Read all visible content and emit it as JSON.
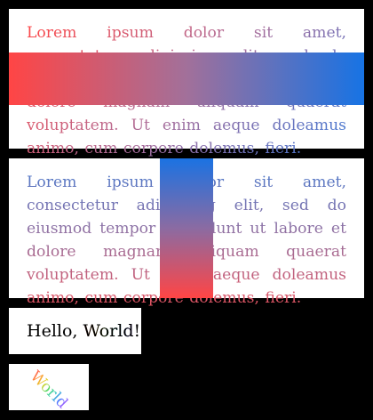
{
  "paragraph_1": "Lorem ipsum dolor sit amet, consectetur adipiscing elit, sed do eiusmod tempor incididunt ut labore et dolore magnam aliquam quaerat voluptatem. Ut enim aeque doleamus animo, cum corpore dolemus, fieri.",
  "paragraph_2": "Lorem ipsum dolor sit amet, consectetur adipiscing elit, sed do eiusmod tempor incididunt ut labore et dolore magnam aliquam quaerat voluptatem. Ut enim aeque doleamus animo, cum corpore dolemus, fieri.",
  "greeting": {
    "hello": "Hello, ",
    "world": "World",
    "exclaim": "!"
  },
  "rotated_word": "World",
  "colors": {
    "background": "#000000",
    "card": "#ffffff",
    "gradient_red": "#ff4545",
    "gradient_blue": "#1773e4"
  }
}
